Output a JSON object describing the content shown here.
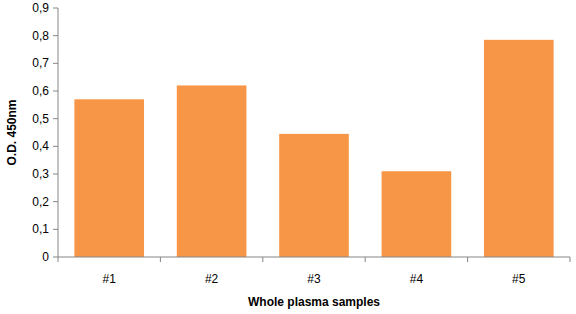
{
  "chart_data": {
    "type": "bar",
    "x_label": "Whole plasma samples",
    "y_label": "O.D. 450nm",
    "categories": [
      "#1",
      "#2",
      "#3",
      "#4",
      "#5"
    ],
    "values": [
      0.57,
      0.62,
      0.445,
      0.31,
      0.785
    ],
    "color": "#f79646",
    "ylim": [
      0,
      0.9
    ],
    "yticks": [
      0,
      {
        "value": 0.1,
        "label": "0,1"
      },
      {
        "value": 0.2,
        "label": "0,2"
      },
      {
        "value": 0.3,
        "label": "0,3"
      },
      {
        "value": 0.4,
        "label": "0,4"
      },
      {
        "value": 0.5,
        "label": "0,5"
      },
      {
        "value": 0.6,
        "label": "0,6"
      },
      {
        "value": 0.7,
        "label": "0,7"
      },
      {
        "value": 0.8,
        "label": "0,8"
      },
      {
        "value": 0.9,
        "label": "0,9"
      }
    ],
    "grid": false
  }
}
